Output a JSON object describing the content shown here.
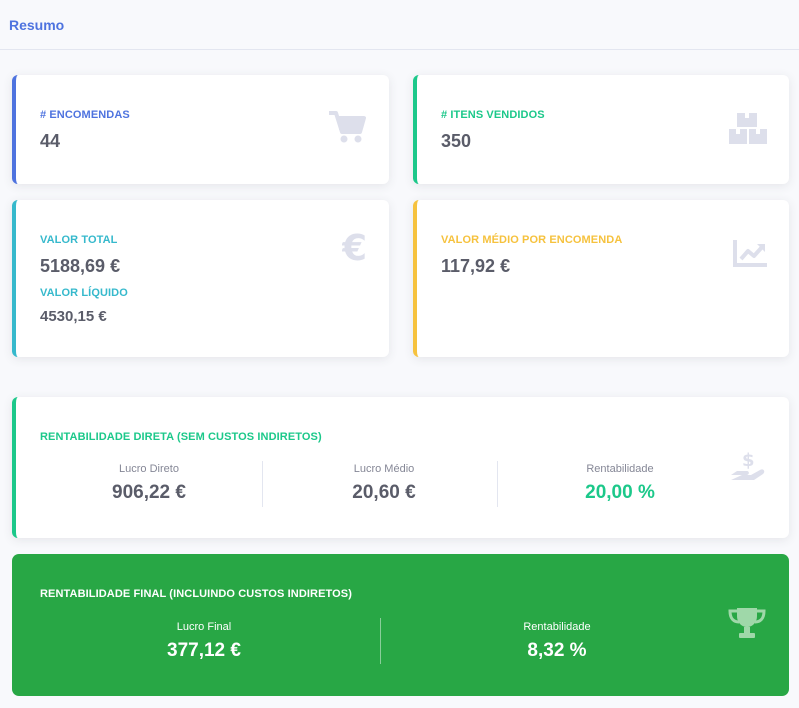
{
  "header": {
    "title": "Resumo"
  },
  "cards": {
    "encomendas": {
      "label": "# ENCOMENDAS",
      "value": "44",
      "icon": "cart-icon"
    },
    "itens": {
      "label": "# ITENS VENDIDOS",
      "value": "350",
      "icon": "boxes-icon"
    },
    "valor_total": {
      "label": "VALOR TOTAL",
      "value": "5188,69 €",
      "label2": "VALOR LÍQUIDO",
      "value2": "4530,15 €",
      "icon": "euro-icon"
    },
    "valor_medio": {
      "label": "VALOR MÉDIO POR ENCOMENDA",
      "value": "117,92 €",
      "icon": "chart-line-icon"
    }
  },
  "rentabilidade_direta": {
    "label": "RENTABILIDADE DIRETA (SEM CUSTOS INDIRETOS)",
    "icon": "hand-holding-usd-icon",
    "cols": [
      {
        "label": "Lucro Direto",
        "value": "906,22 €"
      },
      {
        "label": "Lucro Médio",
        "value": "20,60 €"
      },
      {
        "label": "Rentabilidade",
        "value": "20,00 %"
      }
    ]
  },
  "rentabilidade_final": {
    "label": "RENTABILIDADE FINAL (INCLUINDO CUSTOS INDIRETOS)",
    "icon": "trophy-icon",
    "cols": [
      {
        "label": "Lucro Final",
        "value": "377,12 €"
      },
      {
        "label": "Rentabilidade",
        "value": "8,32 %"
      }
    ]
  },
  "colors": {
    "primary": "#4e73df",
    "success": "#1cc88a",
    "info": "#36b9cc",
    "warning": "#f6c23e",
    "final_bg": "#28a745",
    "icon_muted": "#dddfeb"
  }
}
